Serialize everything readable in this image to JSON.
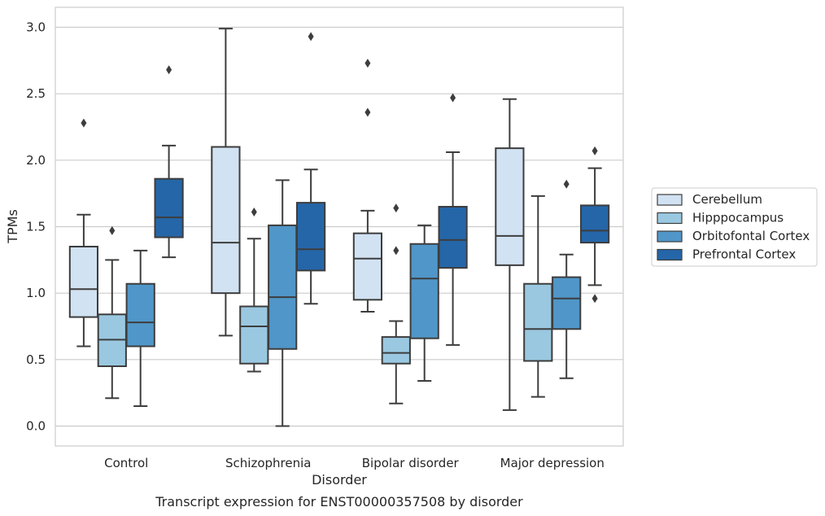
{
  "chart_data": {
    "type": "box",
    "title": "",
    "caption": "Transcript expression for ENST00000357508 by disorder",
    "xlabel": "Disorder",
    "ylabel": "TPMs",
    "ylim": [
      -0.15,
      3.15
    ],
    "yticks": [
      "0.0",
      "0.5",
      "1.0",
      "1.5",
      "2.0",
      "2.5",
      "3.0"
    ],
    "grid": "horizontal",
    "legend_position": "right",
    "categories": [
      "Control",
      "Schizophrenia",
      "Bipolar disorder",
      "Major depression"
    ],
    "series": [
      {
        "name": "Cerebellum",
        "color": "#d1e2f2",
        "boxes": [
          {
            "whislo": 0.6,
            "q1": 0.82,
            "med": 1.03,
            "q3": 1.35,
            "whishi": 1.59,
            "fliers": [
              2.28
            ]
          },
          {
            "whislo": 0.68,
            "q1": 1.0,
            "med": 1.38,
            "q3": 2.1,
            "whishi": 2.99,
            "fliers": []
          },
          {
            "whislo": 0.86,
            "q1": 0.95,
            "med": 1.26,
            "q3": 1.45,
            "whishi": 1.62,
            "fliers": [
              2.36,
              2.73
            ]
          },
          {
            "whislo": 0.12,
            "q1": 1.21,
            "med": 1.43,
            "q3": 2.09,
            "whishi": 2.46,
            "fliers": []
          }
        ]
      },
      {
        "name": "Hipppocampus",
        "color": "#9ac8e0",
        "boxes": [
          {
            "whislo": 0.21,
            "q1": 0.45,
            "med": 0.65,
            "q3": 0.84,
            "whishi": 1.25,
            "fliers": [
              1.47
            ]
          },
          {
            "whislo": 0.41,
            "q1": 0.47,
            "med": 0.75,
            "q3": 0.9,
            "whishi": 1.41,
            "fliers": [
              1.61
            ]
          },
          {
            "whislo": 0.17,
            "q1": 0.47,
            "med": 0.55,
            "q3": 0.67,
            "whishi": 0.79,
            "fliers": [
              1.32,
              1.64
            ]
          },
          {
            "whislo": 0.22,
            "q1": 0.49,
            "med": 0.73,
            "q3": 1.07,
            "whishi": 1.73,
            "fliers": []
          }
        ]
      },
      {
        "name": "Orbitofontal Cortex",
        "color": "#5096c8",
        "boxes": [
          {
            "whislo": 0.15,
            "q1": 0.6,
            "med": 0.78,
            "q3": 1.07,
            "whishi": 1.32,
            "fliers": []
          },
          {
            "whislo": 0.0,
            "q1": 0.58,
            "med": 0.97,
            "q3": 1.51,
            "whishi": 1.85,
            "fliers": []
          },
          {
            "whislo": 0.34,
            "q1": 0.66,
            "med": 1.11,
            "q3": 1.37,
            "whishi": 1.51,
            "fliers": []
          },
          {
            "whislo": 0.36,
            "q1": 0.73,
            "med": 0.96,
            "q3": 1.12,
            "whishi": 1.29,
            "fliers": [
              1.82
            ]
          }
        ]
      },
      {
        "name": "Prefrontal Cortex",
        "color": "#2566a8",
        "boxes": [
          {
            "whislo": 1.27,
            "q1": 1.42,
            "med": 1.57,
            "q3": 1.86,
            "whishi": 2.11,
            "fliers": [
              2.68
            ]
          },
          {
            "whislo": 0.92,
            "q1": 1.17,
            "med": 1.33,
            "q3": 1.68,
            "whishi": 1.93,
            "fliers": [
              2.93
            ]
          },
          {
            "whislo": 0.61,
            "q1": 1.19,
            "med": 1.4,
            "q3": 1.65,
            "whishi": 2.06,
            "fliers": [
              2.47
            ]
          },
          {
            "whislo": 1.06,
            "q1": 1.38,
            "med": 1.47,
            "q3": 1.66,
            "whishi": 1.94,
            "fliers": [
              0.96,
              2.07
            ]
          }
        ]
      }
    ]
  }
}
